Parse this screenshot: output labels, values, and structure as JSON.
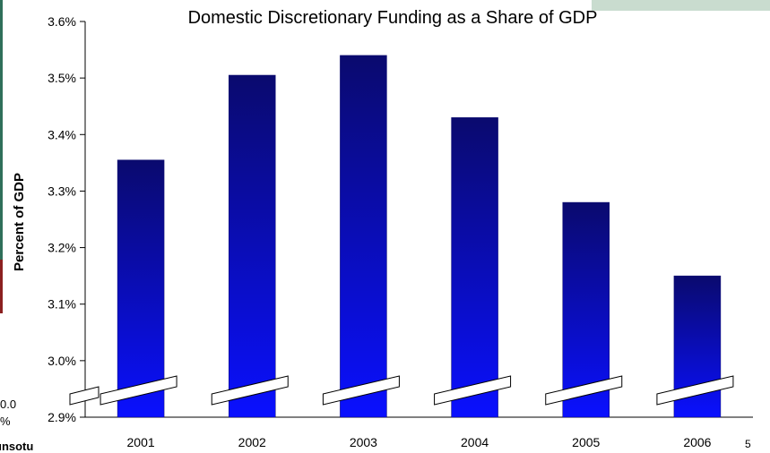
{
  "colors": {
    "bar_top": "#0a0a6e",
    "bar_bottom": "#0a10ff",
    "left_border_green": "#2f6f5a",
    "left_border_red": "#8b2020",
    "top_right_panel": "#c9dccf",
    "axis": "#000000"
  },
  "fragments": {
    "left_value_line1": "0.0",
    "left_value_line2": "%",
    "bottom_left_text": "unsotu",
    "page_number": "5"
  },
  "chart_data": {
    "type": "bar",
    "title": "Domestic Discretionary Funding as a Share of GDP",
    "xlabel": "",
    "ylabel": "Percent of GDP",
    "categories": [
      "2001",
      "2002",
      "2003",
      "2004",
      "2005",
      "2006"
    ],
    "values": [
      3.355,
      3.505,
      3.54,
      3.43,
      3.28,
      3.15
    ],
    "ylim": [
      2.9,
      3.6
    ],
    "yticks": [
      2.9,
      3.0,
      3.1,
      3.2,
      3.3,
      3.4,
      3.5,
      3.6
    ],
    "ytick_labels": [
      "2.9%",
      "3.0%",
      "3.1%",
      "3.2%",
      "3.3%",
      "3.4%",
      "3.5%",
      "3.6%"
    ],
    "axis_break": true,
    "grid": false,
    "legend": "none"
  }
}
